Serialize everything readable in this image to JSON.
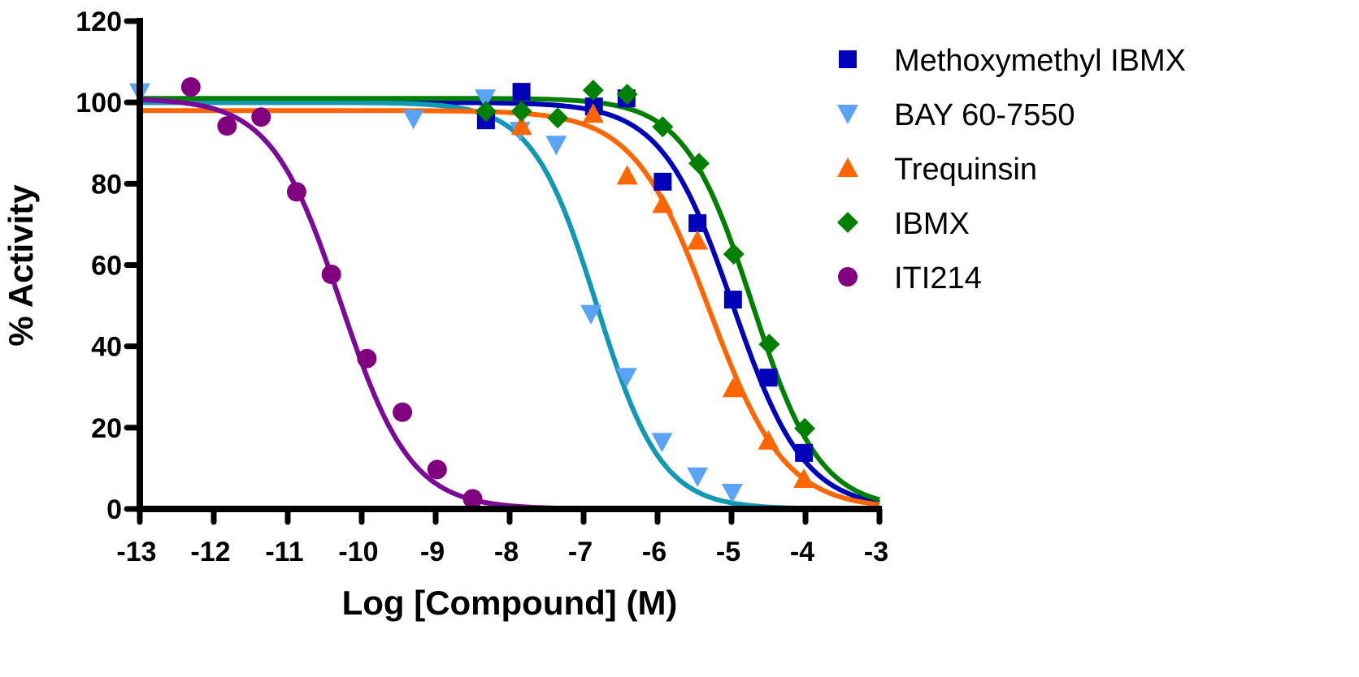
{
  "chart_data": {
    "type": "scatter",
    "title": "",
    "xlabel": "Log [Compound] (M)",
    "ylabel": "% Activity",
    "xlim": [
      -13,
      -3
    ],
    "ylim": [
      0,
      120
    ],
    "xticks": [
      -13,
      -12,
      -11,
      -10,
      -9,
      -8,
      -7,
      -6,
      -5,
      -4,
      -3
    ],
    "yticks": [
      0,
      20,
      40,
      60,
      80,
      100,
      120
    ],
    "grid": false,
    "legend_position": "top-right",
    "series": [
      {
        "name": "Methoxymethyl IBMX",
        "marker": "square",
        "color": "#0000BB",
        "curve_color": "#0000BB",
        "fit": {
          "top": 100,
          "bottom": 0,
          "logIC50": -4.98,
          "hill": 0.9
        },
        "points": [
          [
            -8.32,
            95.6
          ],
          [
            -7.84,
            102.6
          ],
          [
            -6.86,
            99
          ],
          [
            -6.42,
            101
          ],
          [
            -5.93,
            80.5
          ],
          [
            -5.46,
            70.3
          ],
          [
            -4.98,
            51.5
          ],
          [
            -4.5,
            32.3
          ],
          [
            -4.02,
            13.8
          ]
        ]
      },
      {
        "name": "BAY 60-7550",
        "marker": "triangle-down",
        "color": "#5BA3F5",
        "curve_color": "#1199B4",
        "fit": {
          "top": 100,
          "bottom": 0,
          "logIC50": -6.82,
          "hill": 1.0
        },
        "points": [
          [
            -13,
            102.5
          ],
          [
            -9.3,
            96
          ],
          [
            -8.33,
            101
          ],
          [
            -7.86,
            93
          ],
          [
            -7.37,
            89.6
          ],
          [
            -6.9,
            48
          ],
          [
            -6.42,
            32.5
          ],
          [
            -5.94,
            16.5
          ],
          [
            -5.46,
            8
          ],
          [
            -4.99,
            4
          ]
        ]
      },
      {
        "name": "Trequinsin",
        "marker": "triangle-up",
        "color": "#FF6600",
        "curve_color": "#FF6600",
        "fit": {
          "top": 98,
          "bottom": 0,
          "logIC50": -5.3,
          "hill": 0.85
        },
        "points": [
          [
            -7.84,
            94.2
          ],
          [
            -6.87,
            97.2
          ],
          [
            -6.41,
            82
          ],
          [
            -5.93,
            75
          ],
          [
            -5.46,
            66
          ],
          [
            -4.98,
            29.7
          ],
          [
            -4.5,
            16.8
          ],
          [
            -4.02,
            7.4
          ]
        ]
      },
      {
        "name": "IBMX",
        "marker": "diamond",
        "color": "#008000",
        "curve_color": "#008000",
        "fit": {
          "top": 101,
          "bottom": 0,
          "logIC50": -4.72,
          "hill": 0.95
        },
        "points": [
          [
            -8.32,
            97.8
          ],
          [
            -7.84,
            97.8
          ],
          [
            -7.35,
            96.2
          ],
          [
            -6.87,
            103
          ],
          [
            -6.41,
            102
          ],
          [
            -5.93,
            94
          ],
          [
            -5.44,
            85
          ],
          [
            -4.97,
            62.7
          ],
          [
            -4.49,
            40.5
          ],
          [
            -4.01,
            19.8
          ]
        ]
      },
      {
        "name": "ITI214",
        "marker": "circle",
        "color": "#800080",
        "curve_color": "#7B0A99",
        "fit": {
          "top": 101,
          "bottom": 0,
          "logIC50": -10.28,
          "hill": 0.92
        },
        "points": [
          [
            -12.31,
            103.8
          ],
          [
            -11.82,
            94.2
          ],
          [
            -11.36,
            96.4
          ],
          [
            -10.88,
            78
          ],
          [
            -10.41,
            57.7
          ],
          [
            -9.93,
            37
          ],
          [
            -9.45,
            23.8
          ],
          [
            -8.98,
            9.7
          ],
          [
            -8.5,
            2.5
          ]
        ]
      }
    ]
  }
}
